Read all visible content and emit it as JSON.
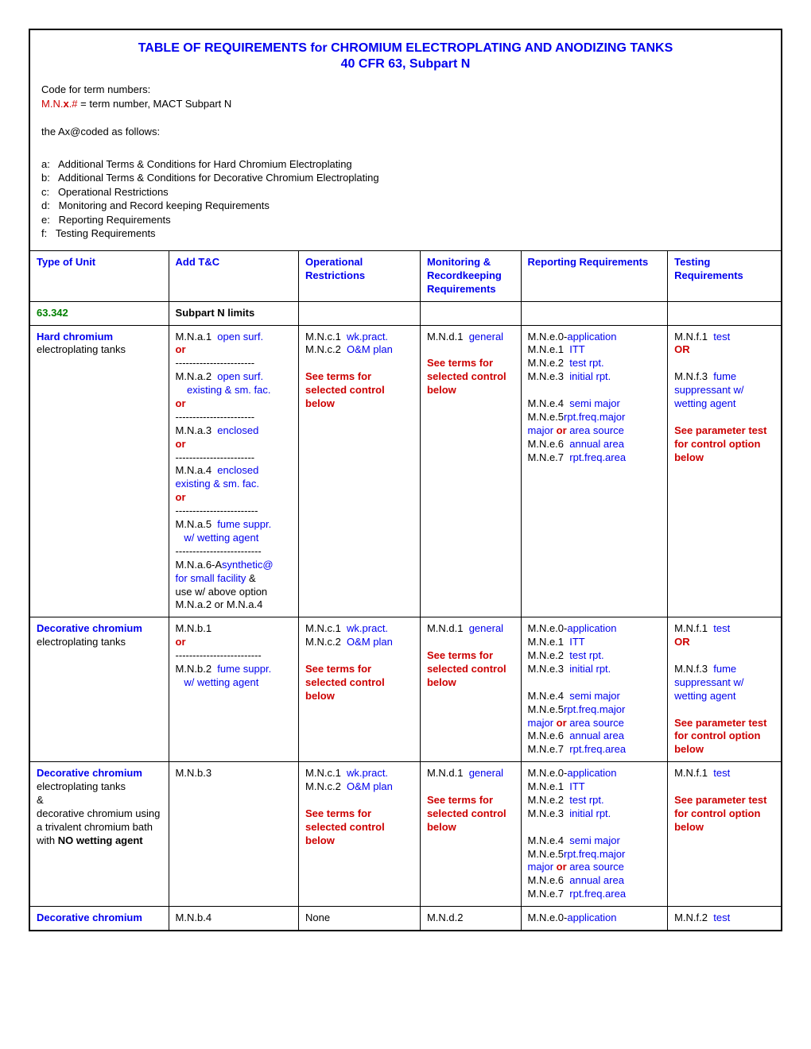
{
  "title_line1": "TABLE OF REQUIREMENTS for CHROMIUM ELECTROPLATING AND ANODIZING TANKS",
  "title_line2": "40 CFR 63, Subpart N",
  "intro": {
    "code_for": "Code for term numbers:",
    "mn_prefix": "M.N.",
    "mn_x": "x",
    "mn_suffix": ".# ",
    "mn_desc": "= term number, MACT Subpart N",
    "the_ax": "the Ax@coded as follows:",
    "defs": [
      "a:   Additional Terms & Conditions for Hard Chromium Electroplating",
      "b:   Additional Terms & Conditions for Decorative Chromium Electroplating",
      "c:   Operational Restrictions",
      "d:   Monitoring and Record keeping Requirements",
      "e:   Reporting Requirements",
      "f:   Testing Requirements"
    ]
  },
  "headers": [
    "Type of Unit",
    "Add T&C",
    "Operational Restrictions",
    "Monitoring & Recordkeeping Requirements",
    "Reporting Requirements",
    "Testing Requirements"
  ],
  "section": {
    "col1": "63.342",
    "col2": "Subpart N limits"
  },
  "rows": {
    "hard": {
      "c1": {
        "bold": "Hard chromium",
        "rest": "electroplating tanks"
      },
      "c2": {
        "l": [
          {
            "pre": "M.N.a.1",
            "blue": "  open surf."
          },
          {
            "red": "or"
          },
          {
            "dash": "-----------------------"
          },
          {
            "pre": "M.N.a.2",
            "blue": "  open surf."
          },
          {
            "blue": "    existing & sm. fac."
          },
          {
            "red": "or"
          },
          {
            "dash": "-----------------------"
          },
          {
            "pre": "M.N.a.3",
            "blue": "  enclosed"
          },
          {
            "red": "or"
          },
          {
            "dash": "-----------------------"
          },
          {
            "pre": "M.N.a.4",
            "blue": "  enclosed"
          },
          {
            "blue": "existing & sm. fac."
          },
          {
            "red": "or"
          },
          {
            "dash": "------------------------"
          },
          {
            "pre": "M.N.a.5",
            "blue": "  fume suppr."
          },
          {
            "blue": "   w/ wetting agent"
          },
          {
            "dash": "-------------------------"
          },
          {
            "pre": "M.N.a.6-A",
            "blue": "synthetic@"
          },
          {
            "blue": "for small facility",
            "black": " &"
          },
          {
            "black": "use w/ above option"
          },
          {
            "black": "M.N.a.2 or M.N.a.4"
          }
        ]
      },
      "c3": {
        "l": [
          {
            "pre": "M.N.c.1",
            "blue": "  wk.pract."
          },
          {
            "pre": "M.N.c.2",
            "blue": "  O&M plan"
          },
          {
            "blank": true
          },
          {
            "red": "See terms for selected control below",
            "bold": true
          }
        ]
      },
      "c4": {
        "l": [
          {
            "pre": "M.N.d.1",
            "blue": "  general"
          },
          {
            "blank": true
          },
          {
            "red": "See terms for selected control below",
            "bold": true
          }
        ]
      },
      "c5": {
        "l": [
          {
            "pre": "M.N.e.0-",
            "blue": "application"
          },
          {
            "pre": "M.N.e.1",
            "blue": "  ITT"
          },
          {
            "pre": "M.N.e.2",
            "blue": "  test rpt."
          },
          {
            "pre": "M.N.e.3",
            "blue": "  initial rpt."
          },
          {
            "blank": true
          },
          {
            "pre": "M.N.e.4",
            "blue": "  semi major"
          },
          {
            "pre": "M.N.e.5",
            "blue": "rpt.freq.major"
          },
          {
            "blue": "major ",
            "red": "or",
            "blue2": " area source"
          },
          {
            "pre": "M.N.e.6",
            "blue": "  annual area"
          },
          {
            "pre": "M.N.e.7",
            "blue": "  rpt.freq.area"
          }
        ]
      },
      "c6": {
        "l": [
          {
            "pre": "M.N.f.1",
            "blue": "  test"
          },
          {
            "red": "OR",
            "bold": true
          },
          {
            "blank": true
          },
          {
            "pre": "M.N.f.3",
            "blue": "  fume"
          },
          {
            "blue": "suppressant w/ wetting agent"
          },
          {
            "blank": true
          },
          {
            "red": "See parameter test for control option below",
            "bold": true
          }
        ]
      }
    },
    "deco1": {
      "c1": {
        "bold": "Decorative chromium",
        "rest": "electroplating tanks"
      },
      "c2": {
        "l": [
          {
            "pre": "M.N.b.1"
          },
          {
            "red": "or"
          },
          {
            "dash": "-------------------------"
          },
          {
            "pre": "M.N.b.2",
            "blue": "  fume suppr."
          },
          {
            "blue": "   w/ wetting agent"
          }
        ]
      }
    },
    "deco2": {
      "c1": {
        "bold": "Decorative chromium",
        "rest": "electroplating tanks",
        "amp": "&",
        "rest2": "decorative chromium using a trivalent chromium bath with ",
        "rest2_bold": "NO wetting agent"
      },
      "c2": {
        "l": [
          {
            "pre": "M.N.b.3"
          }
        ]
      },
      "c6": {
        "l": [
          {
            "pre": "M.N.f.1",
            "blue": "  test"
          },
          {
            "blank": true
          },
          {
            "red": "See parameter test for control option below",
            "bold": true
          }
        ]
      }
    },
    "deco3": {
      "c1": {
        "bold": "Decorative chromium"
      },
      "c2": "M.N.b.4",
      "c3": "None",
      "c4": "M.N.d.2",
      "c5": {
        "l": [
          {
            "pre": "M.N.e.0-",
            "blue": "application"
          }
        ]
      },
      "c6": {
        "l": [
          {
            "pre": "M.N.f.2",
            "blue": "  test"
          }
        ]
      }
    }
  }
}
